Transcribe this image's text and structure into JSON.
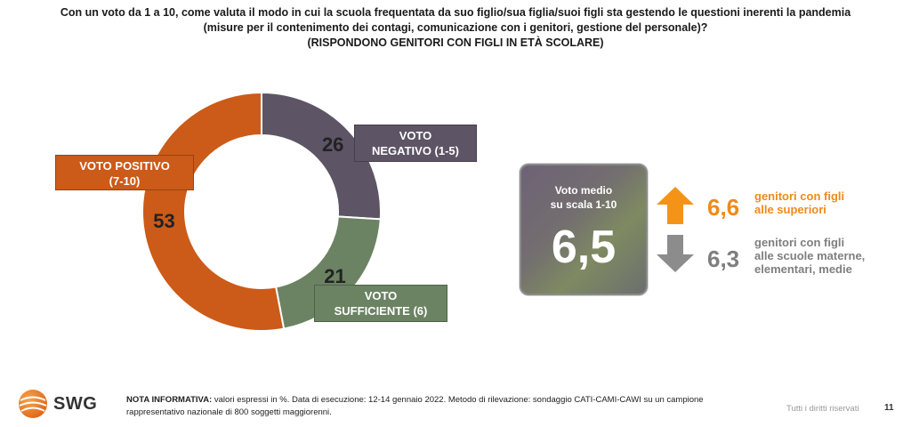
{
  "title": {
    "line1": "Con un voto da 1 a 10, come valuta il modo in cui la scuola frequentata da suo figlio/sua figlia/suoi figli sta gestendo le questioni inerenti la pandemia",
    "line2": "(misure per il contenimento dei contagi, comunicazione con i genitori, gestione del personale)?",
    "line3": "(RISPONDONO GENITORI CON FIGLI IN ETÀ SCOLARE)"
  },
  "chart_data": {
    "type": "pie",
    "subtype": "donut",
    "unit": "%",
    "slices": [
      {
        "label_line1": "VOTO",
        "label_line2": "NEGATIVO (1-5)",
        "value": 26,
        "color": "#5d5465"
      },
      {
        "label_line1": "VOTO",
        "label_line2": "SUFFICIENTE (6)",
        "value": 21,
        "color": "#6b8363"
      },
      {
        "label_line1": "VOTO POSITIVO",
        "label_line2": "(7-10)",
        "value": 53,
        "color": "#cc5a18"
      }
    ]
  },
  "mean": {
    "caption_line1": "Voto medio",
    "caption_line2": "su scala 1-10",
    "value": "6,5"
  },
  "subgroups": [
    {
      "value": "6,6",
      "label_line1": "genitori con figli",
      "label_line2": "alle superiori",
      "direction": "up",
      "color": "#f08a1a"
    },
    {
      "value": "6,3",
      "label_line1": "genitori con figli",
      "label_line2": "alle scuole materne,",
      "label_line3": "elementari, medie",
      "direction": "down",
      "color": "#7f7f7f"
    }
  ],
  "footer": {
    "brand": "SWG",
    "note_bold": "NOTA INFORMATIVA:",
    "note_text": "valori espressi in %. Data di esecuzione: 12-14 gennaio 2022. Metodo di rilevazione: sondaggio CATI-CAMI-CAWI su un campione rappresentativo nazionale di 800 soggetti maggiorenni.",
    "rights": "Tutti i diritti riservati",
    "page": "11"
  }
}
